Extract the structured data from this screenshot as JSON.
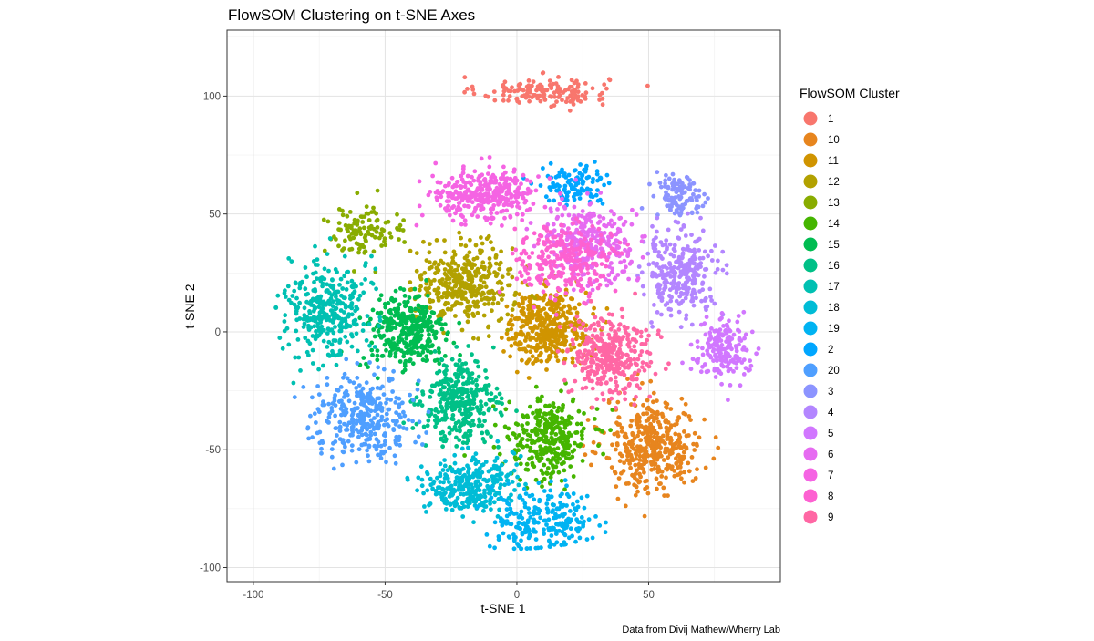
{
  "chart_data": {
    "type": "scatter",
    "title": "FlowSOM Clustering on t-SNE Axes",
    "xlabel": "t-SNE 1",
    "ylabel": "t-SNE 2",
    "xlim": [
      -110,
      100
    ],
    "ylim": [
      -106,
      128
    ],
    "x_ticks": [
      -100,
      -50,
      0,
      50
    ],
    "y_ticks": [
      -100,
      -50,
      0,
      50,
      100
    ],
    "x_tick_labels": [
      "-100",
      "-50",
      "0",
      "50"
    ],
    "y_tick_labels": [
      "-100",
      "-50",
      "0",
      "50",
      "100"
    ],
    "grid": true,
    "legend_title": "FlowSOM Cluster",
    "legend_position": "right",
    "caption": "Data from Divij Mathew/Wherry Lab",
    "series": [
      {
        "name": "1",
        "color": "#F8766D",
        "center": [
          10,
          102
        ],
        "spread": [
          32,
          8
        ],
        "count": 150
      },
      {
        "name": "10",
        "color": "#E7851E",
        "center": [
          52,
          -48
        ],
        "spread": [
          24,
          26
        ],
        "count": 420
      },
      {
        "name": "11",
        "color": "#D09400",
        "center": [
          12,
          2
        ],
        "spread": [
          20,
          20
        ],
        "count": 380
      },
      {
        "name": "12",
        "color": "#B2A100",
        "center": [
          -20,
          20
        ],
        "spread": [
          24,
          22
        ],
        "count": 370
      },
      {
        "name": "13",
        "color": "#89AC00",
        "center": [
          -58,
          42
        ],
        "spread": [
          20,
          14
        ],
        "count": 110
      },
      {
        "name": "14",
        "color": "#45B500",
        "center": [
          12,
          -45
        ],
        "spread": [
          20,
          22
        ],
        "count": 320
      },
      {
        "name": "15",
        "color": "#00BC51",
        "center": [
          -42,
          0
        ],
        "spread": [
          20,
          22
        ],
        "count": 330
      },
      {
        "name": "16",
        "color": "#00C087",
        "center": [
          -22,
          -30
        ],
        "spread": [
          18,
          22
        ],
        "count": 340
      },
      {
        "name": "17",
        "color": "#00C0B2",
        "center": [
          -72,
          10
        ],
        "spread": [
          20,
          28
        ],
        "count": 340
      },
      {
        "name": "18",
        "color": "#00BCD6",
        "center": [
          -18,
          -65
        ],
        "spread": [
          22,
          16
        ],
        "count": 300
      },
      {
        "name": "19",
        "color": "#00B3F2",
        "center": [
          10,
          -80
        ],
        "spread": [
          26,
          18
        ],
        "count": 230
      },
      {
        "name": "2",
        "color": "#00A6FF",
        "center": [
          22,
          62
        ],
        "spread": [
          18,
          10
        ],
        "count": 120
      },
      {
        "name": "20",
        "color": "#4F9FFF",
        "center": [
          -58,
          -35
        ],
        "spread": [
          24,
          22
        ],
        "count": 330
      },
      {
        "name": "3",
        "color": "#8C94FF",
        "center": [
          62,
          58
        ],
        "spread": [
          14,
          12
        ],
        "count": 110
      },
      {
        "name": "4",
        "color": "#B386FF",
        "center": [
          62,
          25
        ],
        "spread": [
          18,
          22
        ],
        "count": 290
      },
      {
        "name": "5",
        "color": "#D177FF",
        "center": [
          78,
          -8
        ],
        "spread": [
          14,
          16
        ],
        "count": 180
      },
      {
        "name": "6",
        "color": "#E66BF1",
        "center": [
          28,
          38
        ],
        "spread": [
          22,
          22
        ],
        "count": 300
      },
      {
        "name": "7",
        "color": "#F564E3",
        "center": [
          -12,
          58
        ],
        "spread": [
          26,
          14
        ],
        "count": 330
      },
      {
        "name": "8",
        "color": "#FD61D1",
        "center": [
          18,
          30
        ],
        "spread": [
          24,
          20
        ],
        "count": 260
      },
      {
        "name": "9",
        "color": "#FF67A4",
        "center": [
          35,
          -10
        ],
        "spread": [
          20,
          22
        ],
        "count": 350
      }
    ]
  }
}
